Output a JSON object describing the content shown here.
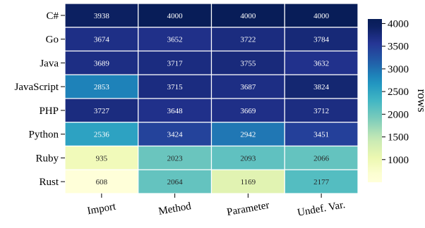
{
  "chart_data": {
    "type": "heatmap",
    "rows": [
      "C#",
      "Go",
      "Java",
      "JavaScript",
      "PHP",
      "Python",
      "Ruby",
      "Rust"
    ],
    "columns": [
      "Import",
      "Method",
      "Parameter",
      "Undef. Var."
    ],
    "values": [
      [
        3938,
        4000,
        4000,
        4000
      ],
      [
        3674,
        3652,
        3722,
        3784
      ],
      [
        3689,
        3717,
        3755,
        3632
      ],
      [
        2853,
        3715,
        3687,
        3824
      ],
      [
        3727,
        3648,
        3669,
        3712
      ],
      [
        2536,
        3424,
        2942,
        3451
      ],
      [
        935,
        2023,
        2093,
        2066
      ],
      [
        608,
        2064,
        1169,
        2177
      ]
    ],
    "colormap": "YlGnBu",
    "vmin": 608,
    "vmax": 4000,
    "colorbar": {
      "label": "rows",
      "ticks": [
        1000,
        1500,
        2000,
        2500,
        3000,
        3500,
        4000
      ]
    }
  }
}
